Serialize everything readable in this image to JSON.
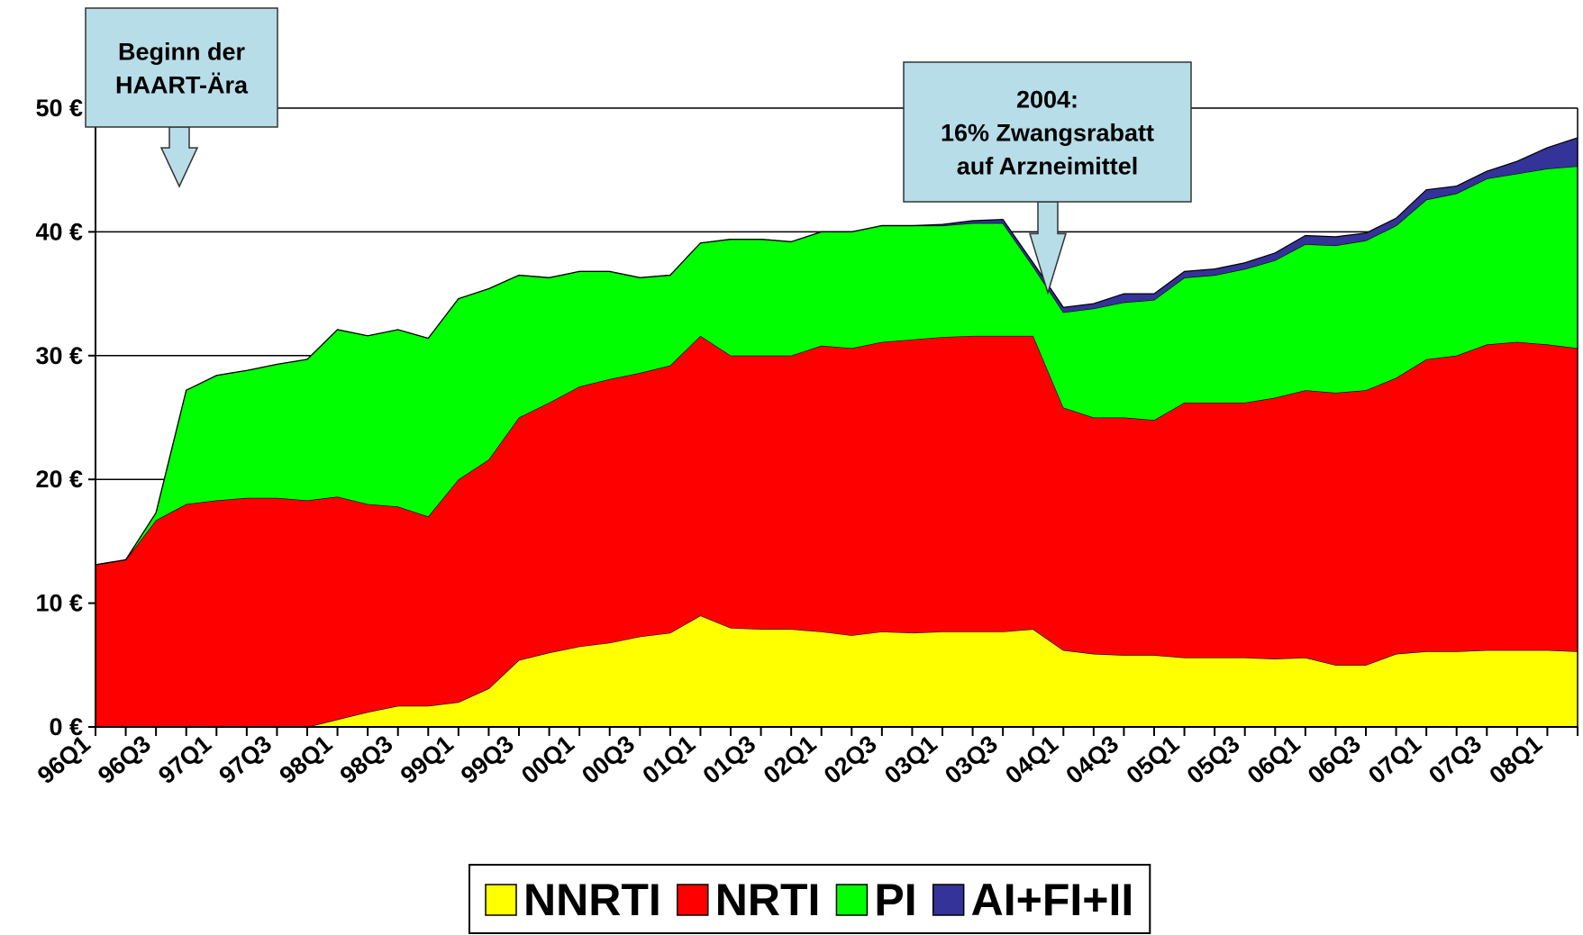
{
  "chart_data": {
    "type": "stacked-area",
    "categories": [
      "96Q1",
      null,
      "96Q3",
      null,
      "97Q1",
      null,
      "97Q3",
      null,
      "98Q1",
      null,
      "98Q3",
      null,
      "99Q1",
      null,
      "99Q3",
      null,
      "00Q1",
      null,
      "00Q3",
      null,
      "01Q1",
      null,
      "01Q3",
      null,
      "02Q1",
      null,
      "02Q3",
      null,
      "03Q1",
      null,
      "03Q3",
      null,
      "04Q1",
      null,
      "04Q3",
      null,
      "05Q1",
      null,
      "05Q3",
      null,
      "06Q1",
      null,
      "06Q3",
      null,
      "07Q1",
      null,
      "07Q3",
      null,
      "08Q1",
      null
    ],
    "series": [
      {
        "name": "NNRTI",
        "color": "#ffff00",
        "values": [
          0,
          0,
          0,
          0,
          0,
          0,
          0,
          0,
          0.6,
          1.2,
          1.7,
          1.7,
          2.0,
          3.1,
          5.4,
          6.0,
          6.5,
          6.8,
          7.3,
          7.6,
          9.0,
          8.0,
          7.9,
          7.9,
          7.7,
          7.4,
          7.7,
          7.6,
          7.7,
          7.7,
          7.7,
          7.9,
          6.2,
          5.9,
          5.8,
          5.8,
          5.6,
          5.6,
          5.6,
          5.5,
          5.6,
          5.0,
          5.0,
          5.9,
          6.1,
          6.1,
          6.2,
          6.2,
          6.2,
          6.1
        ]
      },
      {
        "name": "NRTI",
        "color": "#ff0000",
        "values": [
          13.1,
          13.5,
          16.7,
          18.0,
          18.3,
          18.5,
          18.5,
          18.3,
          18.0,
          16.8,
          16.1,
          15.3,
          18.0,
          18.5,
          19.6,
          20.2,
          21.0,
          21.3,
          21.3,
          21.6,
          22.6,
          22.0,
          22.1,
          22.1,
          23.1,
          23.2,
          23.4,
          23.7,
          23.8,
          23.9,
          23.9,
          23.7,
          19.6,
          19.1,
          19.2,
          19.0,
          20.6,
          20.6,
          20.6,
          21.1,
          21.6,
          22.0,
          22.2,
          22.3,
          23.6,
          23.9,
          24.7,
          24.9,
          24.7,
          24.5
        ]
      },
      {
        "name": "PI",
        "color": "#00ff00",
        "values": [
          0,
          0,
          0.6,
          9.2,
          10.1,
          10.3,
          10.8,
          11.4,
          13.5,
          13.6,
          14.3,
          14.4,
          14.6,
          13.8,
          11.5,
          10.1,
          9.3,
          8.7,
          7.7,
          7.3,
          7.5,
          9.4,
          9.4,
          9.2,
          9.2,
          9.4,
          9.4,
          9.2,
          9.0,
          9.1,
          9.1,
          5.6,
          7.7,
          8.8,
          9.3,
          9.7,
          10.1,
          10.3,
          10.8,
          11.1,
          11.8,
          11.9,
          12.1,
          12.3,
          12.9,
          13.1,
          13.4,
          13.6,
          14.2,
          14.7
        ]
      },
      {
        "name": "AI+FI+II",
        "color": "#333399",
        "values": [
          0,
          0,
          0,
          0,
          0,
          0,
          0,
          0,
          0,
          0,
          0,
          0,
          0,
          0,
          0,
          0,
          0,
          0,
          0,
          0,
          0,
          0,
          0,
          0,
          0,
          0,
          0,
          0,
          0.1,
          0.2,
          0.3,
          0.3,
          0.4,
          0.4,
          0.7,
          0.5,
          0.5,
          0.5,
          0.5,
          0.6,
          0.7,
          0.7,
          0.6,
          0.6,
          0.8,
          0.6,
          0.6,
          1.0,
          1.7,
          2.3
        ]
      }
    ],
    "ylim": [
      0,
      50
    ],
    "yticks": [
      {
        "value": 0,
        "label": "0 €"
      },
      {
        "value": 10,
        "label": "10 €"
      },
      {
        "value": 20,
        "label": "20 €"
      },
      {
        "value": 30,
        "label": "30 €"
      },
      {
        "value": 40,
        "label": "40 €"
      },
      {
        "value": 50,
        "label": "50 €"
      }
    ],
    "grid": true,
    "legend": "bottom",
    "annotations": [
      {
        "text": [
          "Beginn der",
          "HAART-Ära"
        ]
      },
      {
        "text": [
          "2004:",
          "16% Zwangsrabatt",
          "auf Arzneimittel"
        ]
      }
    ]
  }
}
